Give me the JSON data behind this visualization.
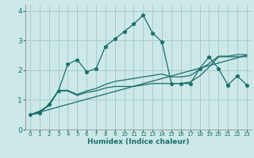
{
  "xlabel": "Humidex (Indice chaleur)",
  "ylabel": "",
  "xlim": [
    -0.5,
    23.5
  ],
  "ylim": [
    0,
    4.2
  ],
  "xticks": [
    0,
    1,
    2,
    3,
    4,
    5,
    6,
    7,
    8,
    9,
    10,
    11,
    12,
    13,
    14,
    15,
    16,
    17,
    18,
    19,
    20,
    21,
    22,
    23
  ],
  "yticks": [
    0,
    1,
    2,
    3,
    4
  ],
  "background_color": "#cce8e8",
  "grid_color": "#aacccc",
  "line_color": "#1a6e6a",
  "series1_x": [
    0,
    1,
    2,
    3,
    4,
    5,
    6,
    7,
    8,
    9,
    10,
    11,
    12,
    13,
    14,
    15,
    16,
    17,
    18,
    19,
    20,
    21,
    22,
    23
  ],
  "series1_y": [
    0.5,
    0.55,
    0.85,
    1.3,
    2.2,
    2.35,
    1.95,
    2.05,
    2.8,
    3.05,
    3.3,
    3.55,
    3.85,
    3.25,
    2.95,
    1.55,
    1.55,
    1.55,
    2.05,
    2.45,
    2.05,
    1.5,
    1.8,
    1.5
  ],
  "series2_x": [
    0,
    1,
    2,
    3,
    4,
    5,
    6,
    7,
    8,
    9,
    10,
    11,
    12,
    13,
    14,
    15,
    16,
    17,
    18,
    19,
    20,
    21,
    22,
    23
  ],
  "series2_y": [
    0.5,
    0.6,
    0.8,
    1.3,
    1.3,
    1.15,
    1.25,
    1.3,
    1.4,
    1.45,
    1.45,
    1.45,
    1.5,
    1.55,
    1.55,
    1.55,
    1.55,
    1.6,
    1.8,
    2.1,
    2.45,
    2.45,
    2.45,
    2.45
  ],
  "series3_x": [
    0,
    1,
    2,
    3,
    4,
    5,
    6,
    7,
    8,
    9,
    10,
    11,
    12,
    13,
    14,
    15,
    16,
    17,
    18,
    19,
    20,
    21,
    22,
    23
  ],
  "series3_y": [
    0.5,
    0.62,
    0.82,
    1.32,
    1.32,
    1.18,
    1.3,
    1.38,
    1.52,
    1.62,
    1.67,
    1.72,
    1.77,
    1.82,
    1.87,
    1.77,
    1.77,
    1.82,
    2.02,
    2.22,
    2.47,
    2.47,
    2.52,
    2.52
  ],
  "series4_x": [
    0,
    23
  ],
  "series4_y": [
    0.5,
    2.5
  ]
}
